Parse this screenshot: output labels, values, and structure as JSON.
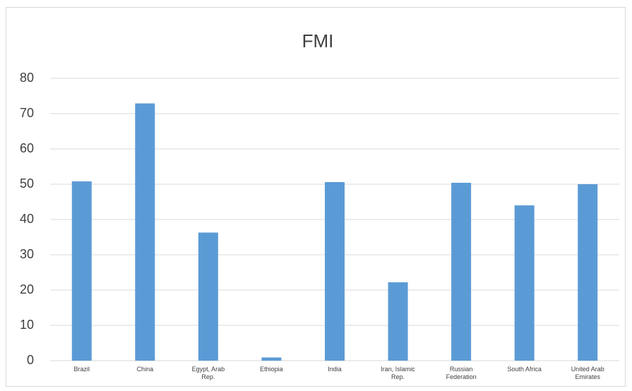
{
  "chart_data": {
    "type": "bar",
    "title": "FMI",
    "categories": [
      "Brazil",
      "China",
      "Egypt, Arab Rep.",
      "Ethiopia",
      "India",
      "Iran, Islamic Rep.",
      "Russian Federation",
      "South Africa",
      "United Arab Emirates"
    ],
    "values": [
      50.8,
      72.9,
      36.3,
      0.9,
      50.6,
      22.2,
      50.4,
      44,
      50
    ],
    "color": "#5b9bd5",
    "ylim": [
      0,
      80
    ],
    "yticks": [
      0,
      10,
      20,
      30,
      40,
      50,
      60,
      70,
      80
    ],
    "grid": true
  }
}
